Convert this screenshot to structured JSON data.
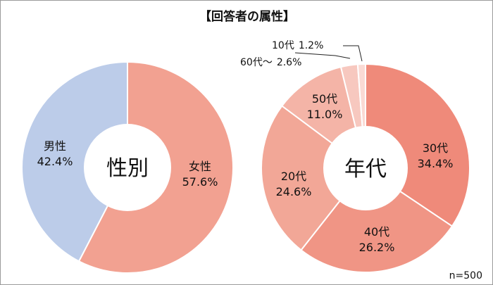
{
  "title": "【回答者の属性】",
  "sample_size": "n=500",
  "chart_data": [
    {
      "type": "pie",
      "donut": true,
      "center_label": "性別",
      "categories": [
        "女性",
        "男性"
      ],
      "values": [
        57.6,
        42.4
      ],
      "value_labels": [
        "57.6%",
        "42.4%"
      ],
      "colors": [
        "#f2a191",
        "#bccce9"
      ]
    },
    {
      "type": "pie",
      "donut": true,
      "center_label": "年代",
      "categories": [
        "30代",
        "40代",
        "20代",
        "50代",
        "60代～",
        "10代"
      ],
      "values": [
        34.4,
        26.2,
        24.6,
        11.0,
        2.6,
        1.2
      ],
      "value_labels": [
        "34.4%",
        "26.2%",
        "24.6%",
        "11.0%",
        "2.6%",
        "1.2%"
      ],
      "colors": [
        "#ef8a7a",
        "#f09585",
        "#f2a797",
        "#f4b4a7",
        "#f7c8bf",
        "#fadad4"
      ]
    }
  ]
}
